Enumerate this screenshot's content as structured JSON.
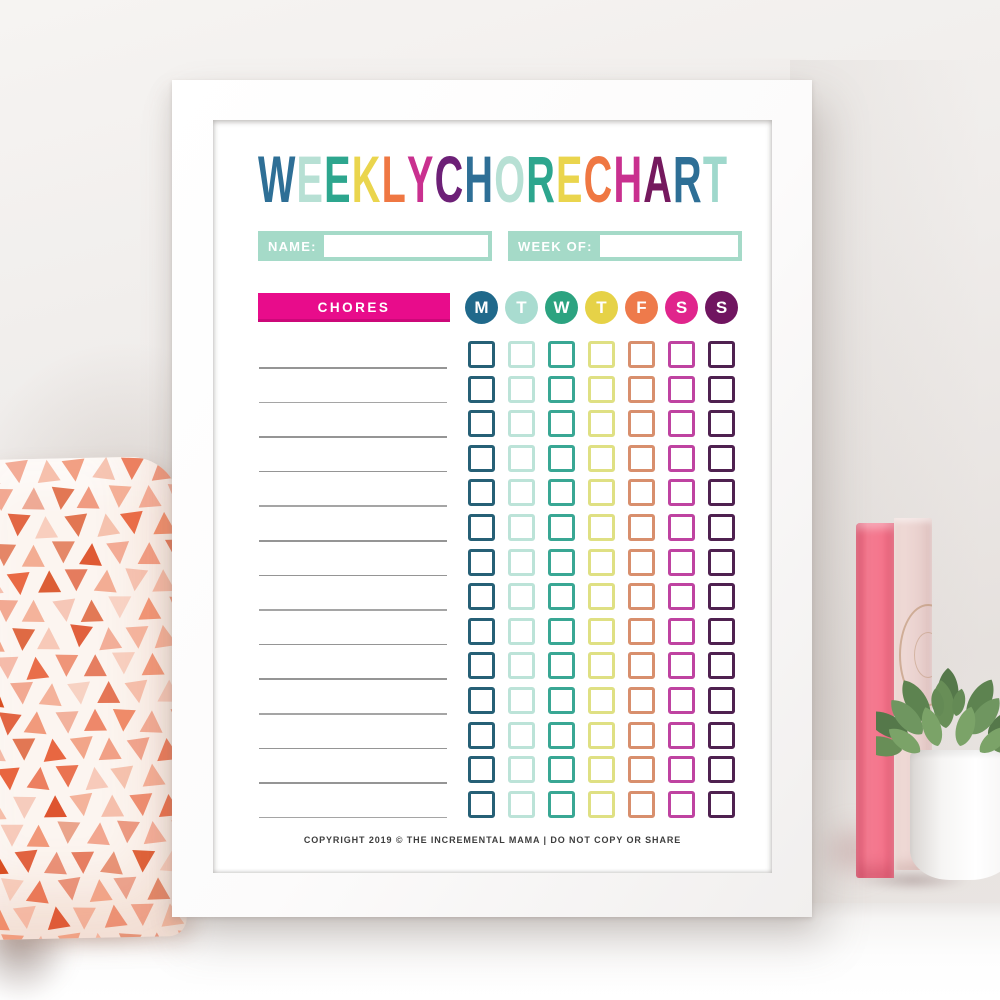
{
  "page": {
    "title_letters": [
      {
        "char": "W",
        "color": "#2e6f96"
      },
      {
        "char": "E",
        "color": "#b7e0d4"
      },
      {
        "char": "E",
        "color": "#2da68e"
      },
      {
        "char": "K",
        "color": "#ead54d"
      },
      {
        "char": "L",
        "color": "#ef7742"
      },
      {
        "char": "Y",
        "color": "#c9308f"
      },
      {
        "char": " "
      },
      {
        "char": "C",
        "color": "#6d2077"
      },
      {
        "char": "H",
        "color": "#2e6f96"
      },
      {
        "char": "O",
        "color": "#b7e0d4"
      },
      {
        "char": "R",
        "color": "#2da68e"
      },
      {
        "char": "E",
        "color": "#ead54d"
      },
      {
        "char": " "
      },
      {
        "char": "C",
        "color": "#ef7742"
      },
      {
        "char": "H",
        "color": "#c9308f"
      },
      {
        "char": "A",
        "color": "#75195e"
      },
      {
        "char": "R",
        "color": "#2e6f96"
      },
      {
        "char": "T",
        "color": "#9fd8cc"
      }
    ],
    "name_label": "NAME:",
    "week_label": "WEEK OF:",
    "chores_header": "CHORES",
    "days": [
      {
        "letter": "M",
        "circle": "#20698b",
        "box": "#266076"
      },
      {
        "letter": "T",
        "circle": "#a9dcd0",
        "box": "#bce3d8"
      },
      {
        "letter": "W",
        "circle": "#2ca380",
        "box": "#39a794"
      },
      {
        "letter": "T",
        "circle": "#e6d247",
        "box": "#dfe083"
      },
      {
        "letter": "F",
        "circle": "#ee7a4b",
        "box": "#d88f6d"
      },
      {
        "letter": "S",
        "circle": "#e0258c",
        "box": "#bf43a1"
      },
      {
        "letter": "S",
        "circle": "#701560",
        "box": "#4f2150"
      }
    ],
    "chore_rows": 14,
    "copyright": "COPYRIGHT 2019 © THE INCREMENTAL MAMA | DO NOT COPY OR SHARE",
    "colors": {
      "chores_bar": "#e80c8b",
      "field_bar": "#a5dac8",
      "line": "#8f8f8f"
    }
  },
  "scene": {
    "palette": {
      "pillow_triangles": [
        "#dd4d26",
        "#e8653f",
        "#ef8a67",
        "#f3ab92",
        "#d94f22",
        "#f09a80"
      ],
      "book_spine": "#f4758c",
      "book_cover": "#ebd3d0",
      "pot": "#ffffff",
      "leaf_greens": [
        "#55784a",
        "#688e57",
        "#7ba368"
      ]
    }
  }
}
